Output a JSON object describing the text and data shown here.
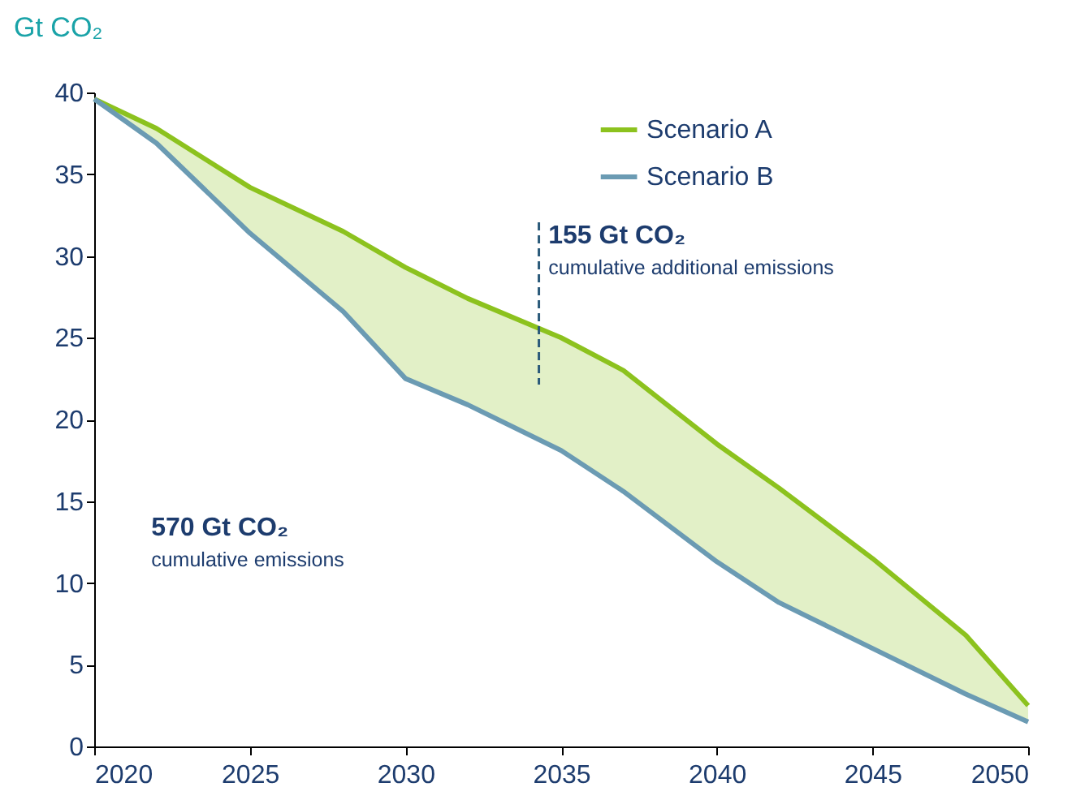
{
  "chart_data": {
    "type": "line",
    "ylabel": "Gt CO₂",
    "x": [
      2020,
      2022,
      2025,
      2028,
      2030,
      2032,
      2035,
      2037,
      2040,
      2042,
      2045,
      2048,
      2050
    ],
    "series": [
      {
        "name": "Scenario A",
        "color": "#8cc21e",
        "values": [
          39.6,
          37.8,
          34.2,
          31.5,
          29.3,
          27.4,
          25.0,
          23.0,
          18.5,
          15.8,
          11.5,
          6.8,
          2.5
        ],
        "lower": [
          39.6,
          36.9,
          31.4,
          26.6,
          22.5,
          20.9,
          18.1,
          15.6,
          11.3,
          8.8,
          6.0,
          3.2,
          1.5
        ],
        "upper": [
          39.6,
          37.8,
          34.2,
          31.5,
          29.3,
          27.4,
          25.0,
          23.0,
          18.5,
          15.8,
          11.5,
          6.8,
          2.5
        ]
      },
      {
        "name": "Scenario B",
        "color": "#6b9bb3",
        "values": [
          39.6,
          36.9,
          31.4,
          26.6,
          22.5,
          20.9,
          18.1,
          15.6,
          11.3,
          8.8,
          6.0,
          3.2,
          1.5
        ]
      }
    ],
    "xlim": [
      2020,
      2050
    ],
    "xticks": [
      2020,
      2025,
      2030,
      2035,
      2040,
      2045,
      2050
    ],
    "ylim": [
      0,
      40
    ],
    "yticks": [
      0,
      5,
      10,
      15,
      20,
      25,
      30,
      35,
      40
    ],
    "grid": false,
    "legend": "top right",
    "line_style": "solid",
    "marker": "none",
    "annotations": [
      "155 Gt CO₂",
      "cumulative additional emissions",
      "570 Gt CO₂",
      "cumulative emissions"
    ]
  }
}
